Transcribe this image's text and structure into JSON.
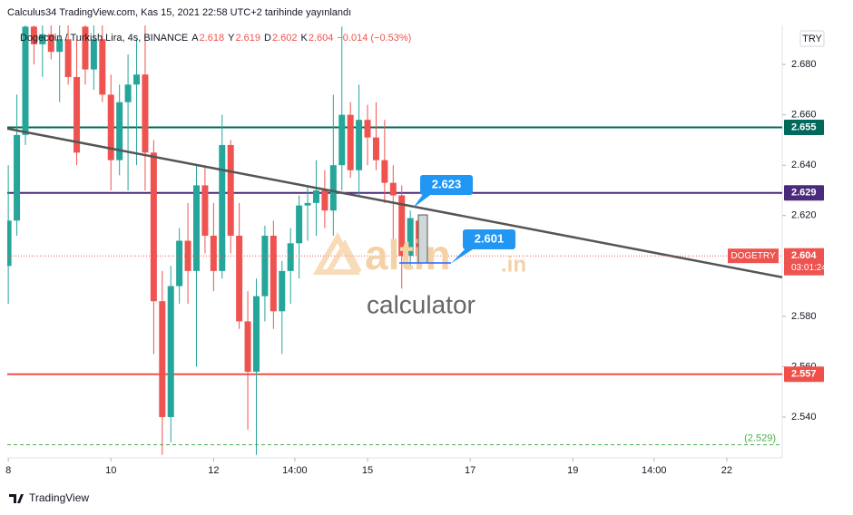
{
  "header": "Calculus34 TradingView.com, Kas 15, 2021 22:58 UTC+2 tarihinde yayınlandı",
  "footer": "TradingView",
  "watermark": {
    "brand": "altin",
    "suffix": ".in",
    "sub": "calculator"
  },
  "chart_data": {
    "type": "candlestick",
    "symbol": "Dogecoin / Turkish Lira, 4s, BINANCE",
    "ohlc_legend": [
      {
        "key": "A",
        "value": 2.618
      },
      {
        "key": "Y",
        "value": 2.619
      },
      {
        "key": "D",
        "value": 2.602
      },
      {
        "key": "K",
        "value": 2.604
      }
    ],
    "change": "−0.014 (−0.53%)",
    "currency": "TRY",
    "up_color": "#26a69a",
    "down_color": "#ef5350",
    "x": [
      8,
      8.1667,
      8.3333,
      8.5,
      8.6667,
      8.8333,
      9,
      9.1667,
      9.3333,
      9.5,
      9.6667,
      9.8333,
      10,
      10.1667,
      10.3333,
      10.5,
      10.6667,
      10.8333,
      11,
      11.1667,
      11.3333,
      11.5,
      11.6667,
      11.8333,
      12,
      12.1667,
      12.3333,
      12.5,
      12.6667,
      12.8333,
      13,
      13.1667,
      13.3333,
      13.5,
      13.6667,
      13.8333,
      14,
      14.1667,
      14.3333,
      14.5,
      14.6667,
      14.8333,
      15,
      15.1667,
      15.3333,
      15.5,
      15.6667,
      15.8333,
      16
    ],
    "open": [
      2.6,
      2.618,
      2.652,
      2.695,
      2.688,
      2.692,
      2.685,
      2.69,
      2.675,
      2.695,
      2.678,
      2.69,
      2.668,
      2.642,
      2.665,
      2.672,
      2.676,
      2.645,
      2.586,
      2.54,
      2.592,
      2.61,
      2.598,
      2.632,
      2.612,
      2.598,
      2.648,
      2.612,
      2.578,
      2.558,
      2.588,
      2.612,
      2.582,
      2.598,
      2.609,
      2.624,
      2.625,
      2.63,
      2.622,
      2.64,
      2.66,
      2.638,
      2.658,
      2.651,
      2.642,
      2.633,
      2.628,
      2.604,
      2.618
    ],
    "high": [
      2.64,
      2.668,
      2.7,
      2.7,
      2.698,
      2.7,
      2.698,
      2.7,
      2.69,
      2.7,
      2.7,
      2.7,
      2.676,
      2.672,
      2.684,
      2.69,
      2.7,
      2.65,
      2.598,
      2.6,
      2.615,
      2.625,
      2.64,
      2.64,
      2.625,
      2.66,
      2.65,
      2.625,
      2.59,
      2.595,
      2.616,
      2.618,
      2.602,
      2.615,
      2.628,
      2.632,
      2.642,
      2.638,
      2.668,
      2.695,
      2.665,
      2.672,
      2.664,
      2.665,
      2.658,
      2.64,
      2.632,
      2.622,
      2.619
    ],
    "low": [
      2.585,
      2.612,
      2.648,
      2.68,
      2.675,
      2.682,
      2.665,
      2.672,
      2.64,
      2.672,
      2.67,
      2.665,
      2.63,
      2.636,
      2.63,
      2.64,
      2.63,
      2.565,
      2.525,
      2.53,
      2.585,
      2.585,
      2.56,
      2.605,
      2.59,
      2.595,
      2.605,
      2.575,
      2.535,
      2.525,
      2.578,
      2.575,
      2.565,
      2.585,
      2.595,
      2.61,
      2.612,
      2.615,
      2.612,
      2.63,
      2.635,
      2.628,
      2.64,
      2.638,
      2.625,
      2.6,
      2.591,
      2.6,
      2.602
    ],
    "close": [
      2.618,
      2.652,
      2.695,
      2.688,
      2.692,
      2.685,
      2.69,
      2.675,
      2.645,
      2.678,
      2.69,
      2.668,
      2.642,
      2.665,
      2.672,
      2.676,
      2.645,
      2.586,
      2.54,
      2.592,
      2.61,
      2.598,
      2.632,
      2.612,
      2.598,
      2.648,
      2.612,
      2.578,
      2.558,
      2.588,
      2.612,
      2.582,
      2.598,
      2.609,
      2.624,
      2.625,
      2.63,
      2.622,
      2.64,
      2.66,
      2.638,
      2.658,
      2.651,
      2.642,
      2.633,
      2.628,
      2.604,
      2.619,
      2.604
    ],
    "xlim": [
      7.98,
      23.08
    ],
    "xticks": [
      {
        "value": 8,
        "label": "8"
      },
      {
        "value": 10,
        "label": "10"
      },
      {
        "value": 12,
        "label": "12"
      },
      {
        "value": 13.5833,
        "label": "14:00"
      },
      {
        "value": 15,
        "label": "15"
      },
      {
        "value": 17,
        "label": "17"
      },
      {
        "value": 19,
        "label": "19"
      },
      {
        "value": 20.5833,
        "label": "14:00"
      },
      {
        "value": 22,
        "label": "22"
      }
    ],
    "ylim": [
      2.5238,
      2.6955
    ],
    "yticks": [
      {
        "value": 2.54,
        "label": "2.540"
      },
      {
        "value": 2.56,
        "label": "2.560"
      },
      {
        "value": 2.58,
        "label": "2.580"
      },
      {
        "value": 2.62,
        "label": "2.620"
      },
      {
        "value": 2.64,
        "label": "2.640"
      },
      {
        "value": 2.66,
        "label": "2.660"
      },
      {
        "value": 2.68,
        "label": "2.680"
      }
    ],
    "levels": [
      {
        "value": 2.655,
        "color": "#00695c"
      },
      {
        "value": 2.629,
        "color": "#4a2a7a"
      },
      {
        "value": 2.557,
        "color": "#f0504a"
      }
    ],
    "support": {
      "value": 2.529,
      "label": "(2.529)",
      "color": "#4caf50"
    },
    "last_price": {
      "value": 2.604,
      "symbol": "DOGETRY",
      "countdown": "03:01:24",
      "color": "#ef5350"
    },
    "trendline": {
      "x": [
        7.98,
        23.08
      ],
      "y": [
        2.6545,
        2.5955
      ],
      "color": "#555"
    },
    "callouts": [
      {
        "value": 2.623
      },
      {
        "value": 2.601
      }
    ]
  }
}
